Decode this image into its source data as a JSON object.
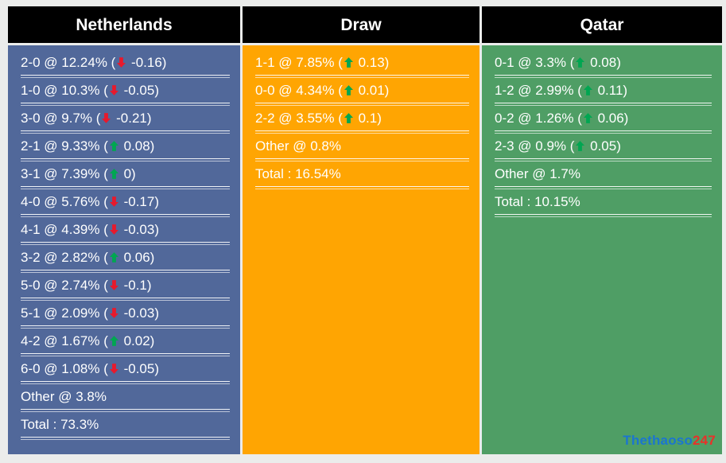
{
  "colors": {
    "page_bg": "#ebeceb",
    "header_bg": "#000000",
    "text": "#ffffff",
    "arrow_up": "#00a651",
    "arrow_down": "#e8192c"
  },
  "columns": [
    {
      "title": "Netherlands",
      "body_bg": "#51689a",
      "rows": [
        {
          "score": "2-0",
          "pct": "12.24%",
          "dir": "down",
          "delta": "-0.16"
        },
        {
          "score": "1-0",
          "pct": "10.3%",
          "dir": "down",
          "delta": "-0.05"
        },
        {
          "score": "3-0",
          "pct": "9.7%",
          "dir": "down",
          "delta": "-0.21"
        },
        {
          "score": "2-1",
          "pct": "9.33%",
          "dir": "up",
          "delta": "0.08"
        },
        {
          "score": "3-1",
          "pct": "7.39%",
          "dir": "up",
          "delta": "0"
        },
        {
          "score": "4-0",
          "pct": "5.76%",
          "dir": "down",
          "delta": "-0.17"
        },
        {
          "score": "4-1",
          "pct": "4.39%",
          "dir": "down",
          "delta": "-0.03"
        },
        {
          "score": "3-2",
          "pct": "2.82%",
          "dir": "up",
          "delta": "0.06"
        },
        {
          "score": "5-0",
          "pct": "2.74%",
          "dir": "down",
          "delta": "-0.1"
        },
        {
          "score": "5-1",
          "pct": "2.09%",
          "dir": "down",
          "delta": "-0.03"
        },
        {
          "score": "4-2",
          "pct": "1.67%",
          "dir": "up",
          "delta": "0.02"
        },
        {
          "score": "6-0",
          "pct": "1.08%",
          "dir": "down",
          "delta": "-0.05"
        },
        {
          "plain": "Other @ 3.8%"
        },
        {
          "plain": "Total : 73.3%"
        }
      ]
    },
    {
      "title": "Draw",
      "body_bg": "#ffa502",
      "rows": [
        {
          "score": "1-1",
          "pct": "7.85%",
          "dir": "up",
          "delta": "0.13"
        },
        {
          "score": "0-0",
          "pct": "4.34%",
          "dir": "up",
          "delta": "0.01"
        },
        {
          "score": "2-2",
          "pct": "3.55%",
          "dir": "up",
          "delta": "0.1"
        },
        {
          "plain": "Other @ 0.8%"
        },
        {
          "plain": "Total : 16.54%"
        }
      ]
    },
    {
      "title": "Qatar",
      "body_bg": "#4f9e65",
      "rows": [
        {
          "score": "0-1",
          "pct": "3.3%",
          "dir": "up",
          "delta": "0.08"
        },
        {
          "score": "1-2",
          "pct": "2.99%",
          "dir": "up",
          "delta": "0.11"
        },
        {
          "score": "0-2",
          "pct": "1.26%",
          "dir": "up",
          "delta": "0.06"
        },
        {
          "score": "2-3",
          "pct": "0.9%",
          "dir": "up",
          "delta": "0.05"
        },
        {
          "plain": "Other @ 1.7%"
        },
        {
          "plain": "Total : 10.15%"
        }
      ]
    }
  ],
  "watermark": {
    "brand": "Thethaoso",
    "suffix": "247",
    "brand_color": "#1b75d0",
    "suffix_color": "#e8312a"
  }
}
